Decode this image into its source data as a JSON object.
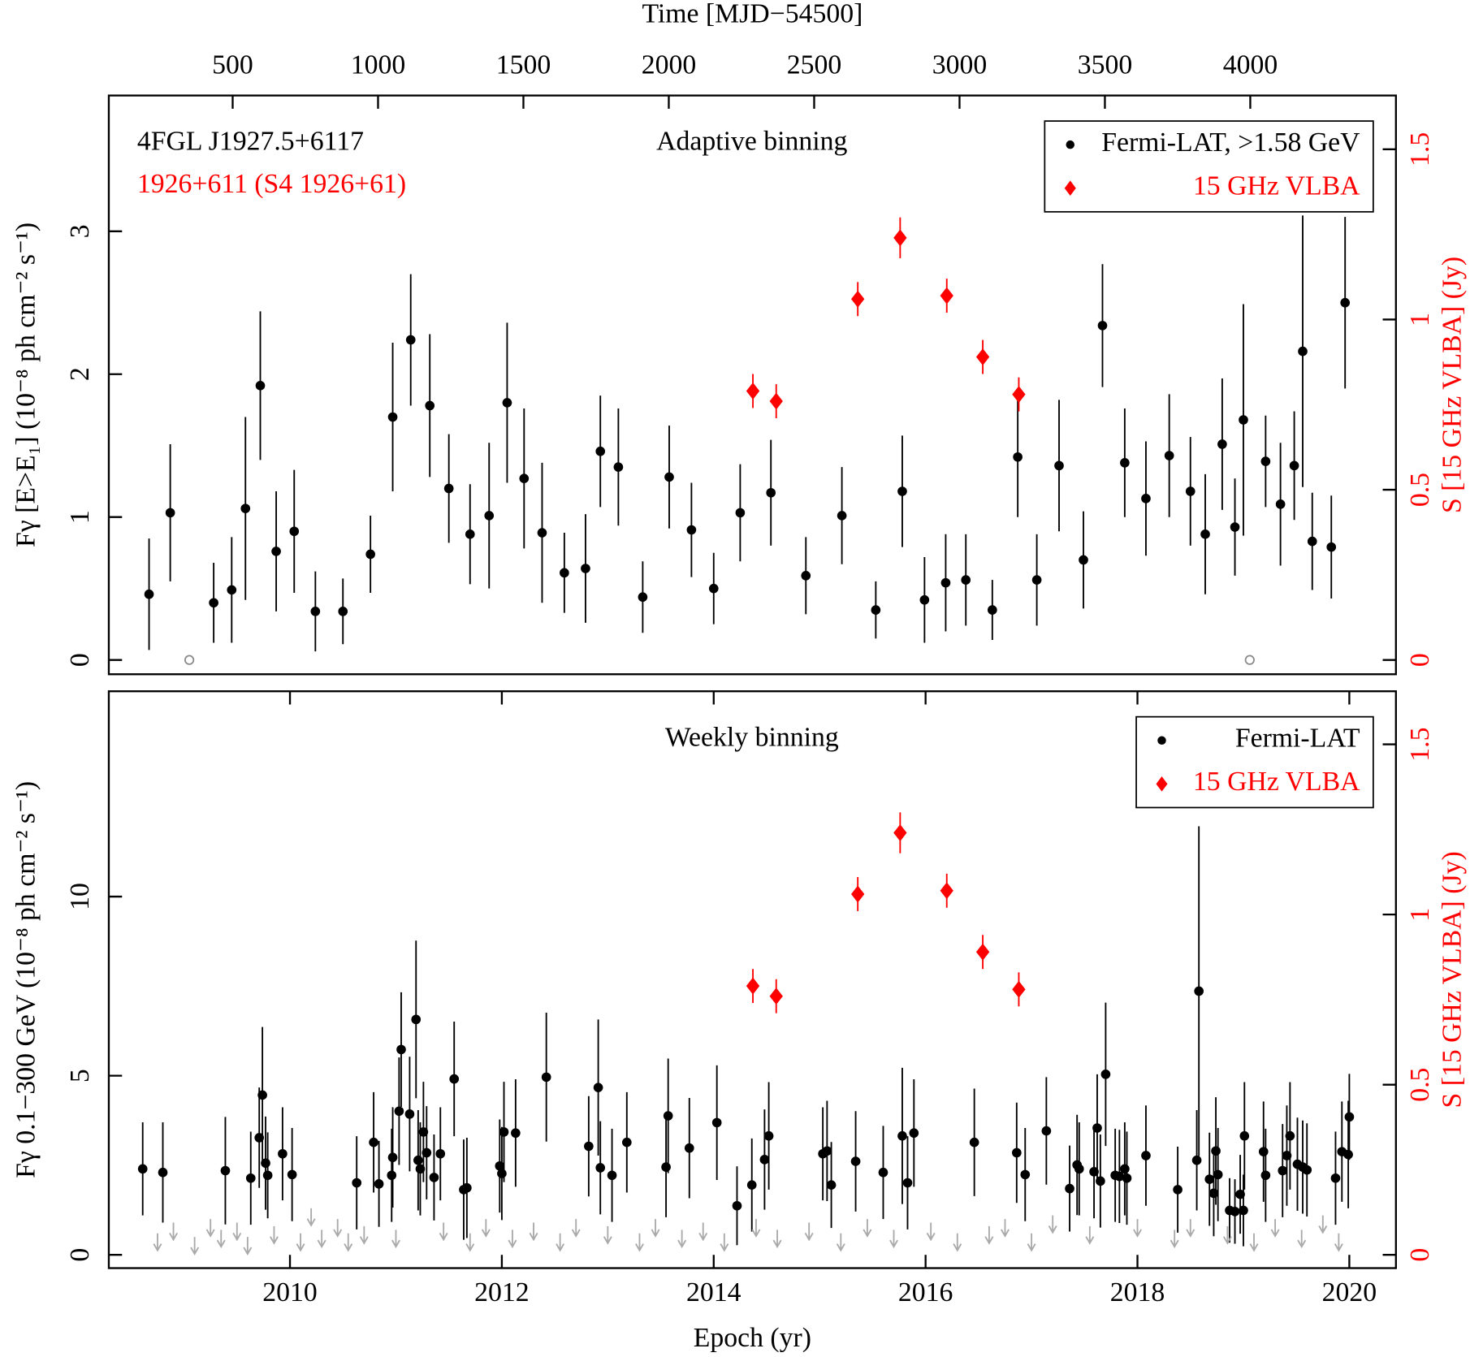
{
  "chart_data": [
    {
      "type": "scatter",
      "title": "Adaptive binning",
      "x2label": "Time [MJD−54500]",
      "ylabel": "Fγ [E>E₁] (10⁻⁸ ph cm⁻² s⁻¹)",
      "y2label": "S [15 GHz VLBA] (Jy)",
      "y2color": "#ff0000",
      "annotations": [
        {
          "text": "4FGL J1927.5+6117",
          "color": "#000000"
        },
        {
          "text": "1926+611 (S4 1926+61)",
          "color": "#ff0000"
        }
      ],
      "xlim": [
        2008.29,
        2020.44
      ],
      "x2lim": [
        74,
        4501
      ],
      "x2ticks": [
        500,
        1000,
        1500,
        2000,
        2500,
        3000,
        3500,
        4000
      ],
      "ylim": [
        -0.1,
        3.95
      ],
      "yticks": [
        0,
        1,
        2,
        3
      ],
      "y2lim": [
        -0.042,
        1.658
      ],
      "y2ticks": [
        0,
        0.5,
        1,
        1.5
      ],
      "legend": "top-right",
      "series": [
        {
          "name": "Fermi-LAT, >1.58 GeV",
          "color": "#000000",
          "marker": "circle",
          "x": [
            2008.67,
            2008.87,
            2009.28,
            2009.45,
            2009.58,
            2009.72,
            2009.87,
            2010.04,
            2010.24,
            2010.5,
            2010.76,
            2010.97,
            2011.14,
            2011.32,
            2011.5,
            2011.7,
            2011.88,
            2012.05,
            2012.21,
            2012.38,
            2012.59,
            2012.79,
            2012.93,
            2013.1,
            2013.33,
            2013.58,
            2013.79,
            2014.0,
            2014.25,
            2014.54,
            2014.87,
            2015.21,
            2015.53,
            2015.78,
            2015.99,
            2016.19,
            2016.38,
            2016.63,
            2016.87,
            2017.05,
            2017.26,
            2017.49,
            2017.67,
            2017.88,
            2018.08,
            2018.3,
            2018.5,
            2018.64,
            2018.8,
            2018.92,
            2019.0,
            2019.21,
            2019.35,
            2019.48,
            2019.56,
            2019.65,
            2019.83,
            2019.96
          ],
          "values": [
            0.46,
            1.03,
            0.4,
            0.49,
            1.06,
            1.92,
            0.76,
            0.9,
            0.34,
            0.34,
            0.74,
            1.7,
            2.24,
            1.78,
            1.2,
            0.88,
            1.01,
            1.8,
            1.27,
            0.89,
            0.61,
            0.64,
            1.46,
            1.35,
            0.44,
            1.28,
            0.91,
            0.5,
            1.03,
            1.17,
            0.59,
            1.01,
            0.35,
            1.18,
            0.42,
            0.54,
            0.56,
            0.35,
            1.42,
            0.56,
            1.36,
            0.7,
            2.34,
            1.38,
            1.13,
            1.43,
            1.18,
            0.88,
            1.51,
            0.93,
            1.68,
            1.39,
            1.09,
            1.36,
            2.16,
            0.83,
            0.79,
            2.5
          ],
          "errors": [
            0.39,
            0.48,
            0.28,
            0.37,
            0.64,
            0.52,
            0.42,
            0.43,
            0.28,
            0.23,
            0.27,
            0.52,
            0.46,
            0.5,
            0.38,
            0.35,
            0.51,
            0.56,
            0.49,
            0.49,
            0.28,
            0.38,
            0.39,
            0.41,
            0.25,
            0.36,
            0.33,
            0.25,
            0.34,
            0.37,
            0.27,
            0.34,
            0.2,
            0.39,
            0.3,
            0.34,
            0.32,
            0.21,
            0.42,
            0.32,
            0.46,
            0.34,
            0.43,
            0.38,
            0.4,
            0.43,
            0.38,
            0.42,
            0.46,
            0.34,
            0.81,
            0.32,
            0.43,
            0.38,
            0.95,
            0.34,
            0.36,
            0.6
          ]
        },
        {
          "color": "#888888",
          "marker": "open-circle",
          "x": [
            2009.05,
            2019.06
          ],
          "values": [
            0,
            0
          ]
        },
        {
          "name": "15 GHz VLBA",
          "color": "#ff0000",
          "marker": "diamond",
          "axis": "y2",
          "x": [
            2014.37,
            2014.59,
            2015.36,
            2015.76,
            2016.2,
            2016.54,
            2016.88
          ],
          "values": [
            0.79,
            0.76,
            1.06,
            1.24,
            1.07,
            0.89,
            0.78
          ],
          "errors": [
            0.05,
            0.05,
            0.05,
            0.06,
            0.05,
            0.05,
            0.05
          ]
        }
      ]
    },
    {
      "type": "scatter",
      "title": "Weekly binning",
      "xlabel": "Epoch (yr)",
      "ylabel": "Fγ 0.1−300 GeV (10⁻⁸ ph cm⁻² s⁻¹)",
      "y2label": "S [15 GHz VLBA] (Jy)",
      "y2color": "#ff0000",
      "xlim": [
        2008.29,
        2020.44
      ],
      "xticks": [
        2010,
        2012,
        2014,
        2016,
        2018,
        2020
      ],
      "ylim": [
        -0.37,
        15.73
      ],
      "yticks": [
        0,
        5,
        10
      ],
      "y2lim": [
        -0.039,
        1.656
      ],
      "y2ticks": [
        0,
        0.5,
        1,
        1.5
      ],
      "legend": "top-right",
      "series": [
        {
          "name": "Fermi-LAT",
          "color": "#000000",
          "marker": "circle",
          "x": [
            2008.61,
            2008.8,
            2009.39,
            2009.63,
            2009.71,
            2009.74,
            2009.77,
            2009.79,
            2009.93,
            2010.02,
            2010.63,
            2010.79,
            2010.84,
            2010.96,
            2010.97,
            2011.03,
            2011.05,
            2011.13,
            2011.19,
            2011.21,
            2011.23,
            2011.26,
            2011.29,
            2011.36,
            2011.42,
            2011.55,
            2011.64,
            2011.67,
            2011.98,
            2012.0,
            2012.02,
            2012.13,
            2012.42,
            2012.82,
            2012.91,
            2012.93,
            2013.04,
            2013.18,
            2013.55,
            2013.57,
            2013.77,
            2014.03,
            2014.22,
            2014.36,
            2014.48,
            2014.52,
            2015.03,
            2015.07,
            2015.11,
            2015.34,
            2015.6,
            2015.78,
            2015.83,
            2015.89,
            2016.46,
            2016.86,
            2016.94,
            2017.14,
            2017.36,
            2017.43,
            2017.45,
            2017.59,
            2017.62,
            2017.65,
            2017.7,
            2017.79,
            2017.83,
            2017.88,
            2017.9,
            2018.08,
            2018.38,
            2018.56,
            2018.58,
            2018.68,
            2018.72,
            2018.74,
            2018.76,
            2018.87,
            2018.92,
            2018.97,
            2019.0,
            2019.01,
            2019.19,
            2019.21,
            2019.37,
            2019.41,
            2019.44,
            2019.51,
            2019.56,
            2019.6,
            2019.87,
            2019.93,
            2019.99,
            2020.0
          ],
          "values": [
            2.4,
            2.3,
            2.35,
            2.14,
            3.27,
            4.46,
            2.56,
            2.22,
            2.82,
            2.24,
            2.01,
            3.14,
            1.98,
            2.22,
            2.72,
            4.01,
            5.73,
            3.93,
            6.57,
            2.64,
            2.4,
            3.43,
            2.85,
            2.16,
            2.82,
            4.91,
            1.82,
            1.87,
            2.48,
            2.27,
            3.43,
            3.4,
            4.96,
            3.03,
            4.67,
            2.43,
            2.22,
            3.14,
            2.45,
            3.88,
            2.98,
            3.69,
            1.37,
            1.95,
            2.66,
            3.32,
            2.82,
            2.9,
            1.95,
            2.61,
            2.3,
            3.32,
            2.01,
            3.4,
            3.14,
            2.85,
            2.24,
            3.46,
            1.85,
            2.51,
            2.4,
            2.32,
            3.54,
            2.06,
            5.04,
            2.22,
            2.19,
            2.4,
            2.14,
            2.77,
            1.82,
            2.64,
            7.36,
            2.11,
            1.72,
            2.9,
            2.24,
            1.24,
            1.21,
            1.69,
            1.24,
            3.32,
            2.88,
            2.22,
            2.35,
            2.77,
            3.32,
            2.53,
            2.45,
            2.37,
            2.14,
            2.88,
            2.8,
            3.85
          ],
          "errors": [
            1.3,
            1.4,
            1.5,
            1.3,
            1.4,
            1.9,
            1.3,
            1.2,
            1.3,
            1.3,
            1.3,
            1.4,
            1.2,
            1.3,
            1.4,
            1.5,
            1.6,
            1.6,
            2.2,
            1.4,
            1.3,
            1.4,
            1.3,
            1.2,
            1.3,
            1.6,
            1.4,
            1.4,
            1.3,
            1.3,
            1.4,
            1.5,
            1.8,
            1.4,
            1.9,
            1.3,
            1.3,
            1.4,
            1.4,
            1.6,
            1.4,
            1.6,
            1.1,
            1.3,
            1.4,
            1.5,
            1.3,
            1.4,
            1.2,
            1.4,
            1.3,
            1.9,
            1.3,
            1.5,
            1.5,
            1.4,
            1.3,
            1.5,
            1.2,
            1.4,
            1.3,
            1.3,
            1.5,
            1.3,
            2.0,
            1.3,
            1.3,
            1.3,
            1.3,
            1.4,
            1.2,
            1.4,
            4.6,
            1.3,
            1.2,
            1.5,
            1.3,
            0.9,
            0.9,
            1.1,
            1.0,
            1.5,
            1.4,
            1.3,
            1.3,
            1.4,
            1.5,
            1.3,
            1.3,
            1.3,
            1.3,
            1.4,
            1.5,
            1.2
          ]
        },
        {
          "color": "#aaaaaa",
          "marker": "arrow",
          "x": [
            2008.75,
            2008.9,
            2009.1,
            2009.25,
            2009.35,
            2009.5,
            2009.6,
            2009.85,
            2010.1,
            2010.2,
            2010.3,
            2010.45,
            2010.55,
            2010.7,
            2011.0,
            2011.45,
            2011.7,
            2011.85,
            2012.1,
            2012.3,
            2012.55,
            2012.7,
            2013.0,
            2013.3,
            2013.45,
            2013.7,
            2013.9,
            2014.1,
            2014.4,
            2014.6,
            2014.9,
            2015.2,
            2015.45,
            2015.7,
            2016.05,
            2016.3,
            2016.6,
            2016.75,
            2017.0,
            2017.2,
            2017.55,
            2018.0,
            2018.35,
            2018.5,
            2018.85,
            2019.1,
            2019.3,
            2019.55,
            2019.75,
            2019.9
          ],
          "values": [
            0.6,
            0.9,
            0.5,
            1.0,
            0.7,
            0.9,
            0.5,
            0.8,
            0.6,
            1.3,
            0.7,
            1.0,
            0.6,
            0.8,
            0.7,
            0.9,
            0.6,
            1.0,
            0.7,
            0.9,
            0.6,
            1.0,
            0.8,
            0.6,
            1.0,
            0.7,
            0.9,
            0.6,
            1.0,
            0.7,
            0.9,
            0.6,
            1.0,
            0.7,
            0.9,
            0.6,
            0.8,
            1.0,
            0.6,
            1.1,
            0.8,
            1.0,
            0.7,
            1.0,
            0.8,
            0.6,
            1.0,
            0.7,
            1.1,
            0.6
          ]
        },
        {
          "name": "15 GHz VLBA",
          "color": "#ff0000",
          "marker": "diamond",
          "axis": "y2",
          "x": [
            2014.37,
            2014.59,
            2015.36,
            2015.76,
            2016.2,
            2016.54,
            2016.88
          ],
          "values": [
            0.79,
            0.76,
            1.06,
            1.24,
            1.07,
            0.89,
            0.78
          ],
          "errors": [
            0.05,
            0.05,
            0.05,
            0.06,
            0.05,
            0.05,
            0.05
          ]
        }
      ]
    }
  ]
}
